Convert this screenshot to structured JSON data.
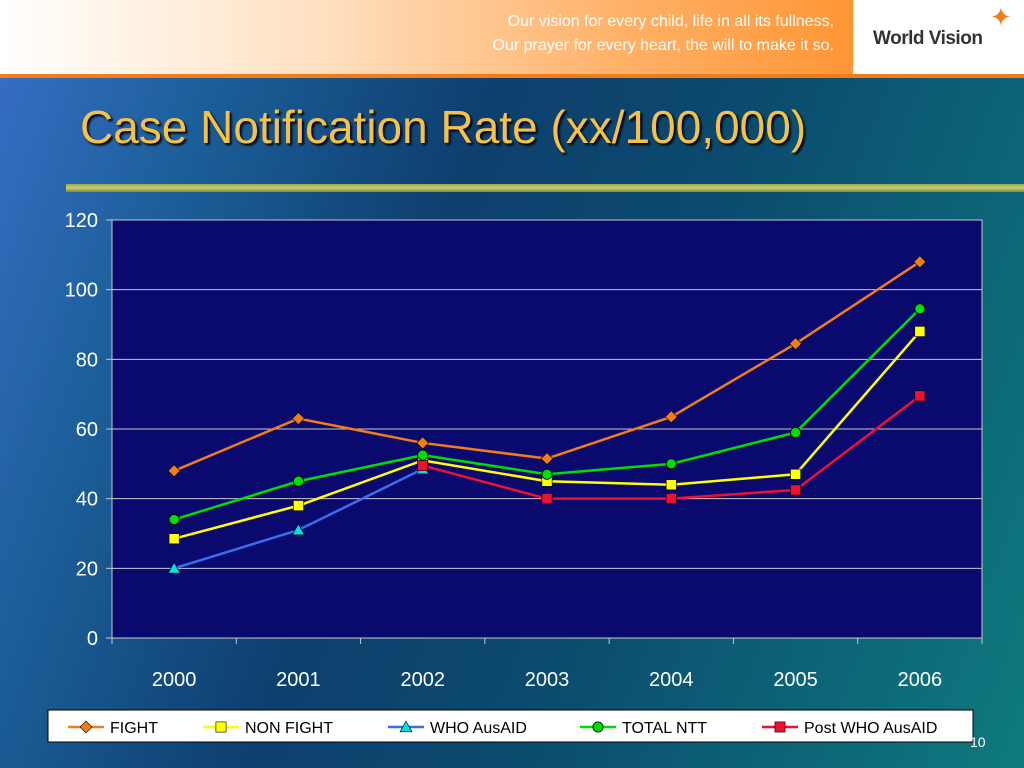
{
  "header": {
    "tagline_line1": "Our vision for every child, life in all its fullness,",
    "tagline_line2": "Our prayer for every heart, the will to make it so.",
    "logo_text": "World Vision"
  },
  "slide": {
    "title": "Case Notification Rate (xx/100,000)",
    "page_number": "10"
  },
  "colors": {
    "plot_background": "#0a0a6e",
    "title": "#f6c246",
    "accent_orange": "#f07d1a"
  },
  "chart_data": {
    "type": "line",
    "title": "",
    "xlabel": "",
    "ylabel": "",
    "categories": [
      "2000",
      "2001",
      "2002",
      "2003",
      "2004",
      "2005",
      "2006"
    ],
    "ylim": [
      0,
      120
    ],
    "yticks": [
      "0",
      "20",
      "40",
      "60",
      "80",
      "100",
      "120"
    ],
    "grid": true,
    "legend_position": "bottom",
    "series": [
      {
        "name": "FIGHT",
        "color": "#f07d1a",
        "marker": "diamond",
        "values": [
          48,
          63,
          56,
          51.5,
          63.5,
          84.5,
          108
        ]
      },
      {
        "name": "NON FIGHT",
        "color": "#ffff00",
        "marker": "square",
        "values": [
          28.5,
          38,
          51,
          45,
          44,
          47,
          88
        ]
      },
      {
        "name": "WHO AusAID",
        "color": "#3a6df0",
        "marker": "triangle",
        "values": [
          20,
          31,
          48.5,
          null,
          null,
          null,
          null
        ]
      },
      {
        "name": "TOTAL NTT",
        "color": "#00dd00",
        "marker": "circle",
        "values": [
          34,
          45,
          52.5,
          47,
          50,
          59,
          94.5
        ]
      },
      {
        "name": "Post WHO AusAID",
        "color": "#ee1133",
        "marker": "square",
        "values": [
          null,
          null,
          49.5,
          40,
          40,
          42.5,
          69.5
        ]
      }
    ]
  }
}
